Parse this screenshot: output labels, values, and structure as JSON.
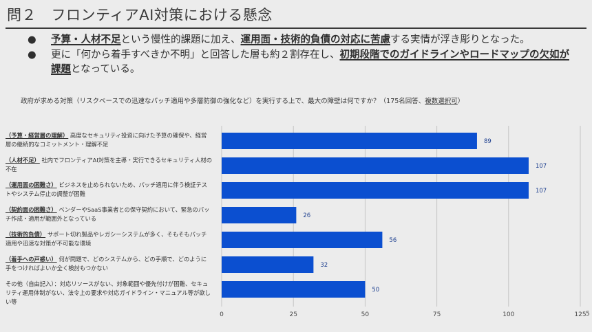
{
  "title": "問２　フロンティアAI対策における懸念",
  "bullets": [
    {
      "marker": "●",
      "segments": [
        {
          "text": "予算・人材不足",
          "em": true
        },
        {
          "text": "という慢性的課題に加え、",
          "em": false
        },
        {
          "text": "運用面・技術的負債の対応に苦慮",
          "em": true
        },
        {
          "text": "する実情が浮き彫りとなった。",
          "em": false
        }
      ]
    },
    {
      "marker": "●",
      "segments": [
        {
          "text": "更に「何から着手すべきか不明」と回答した層も約２割存在し、",
          "em": false
        },
        {
          "text": "初期段階でのガイドラインやロードマップの欠如が課題",
          "em": true
        },
        {
          "text": "となっている。",
          "em": false
        }
      ]
    }
  ],
  "question": {
    "main": "政府が求める対策（リスクベースでの迅速なパッチ適用や多層防御の強化など）を実行する上で、最大の障壁は何ですか？（175名回答、",
    "underlined": "複数選択可",
    "end": "）"
  },
  "categories": [
    {
      "tag": "（予算・経営層の理解）",
      "desc": "高度なセキュリティ投資に向けた予算の確保や、経営層の継続的なコミットメント・理解不足"
    },
    {
      "tag": "（人材不足）",
      "desc": "社内でフロンティアAI対策を主導・実行できるセキュリティ人材の不在"
    },
    {
      "tag": "（運用面の困難さ）",
      "desc": "ビジネスを止められないため、パッチ適用に伴う検証テストやシステム停止の調整が困難"
    },
    {
      "tag": "（契約面の困難さ）",
      "desc": "ベンダーやSaaS事業者との保守契約において、緊急のパッチ作成・適用が範囲外となっている"
    },
    {
      "tag": "（技術的負債）",
      "desc": "サポート切れ製品やレガシーシステムが多く、そもそもパッチ適用や迅速な対策が不可能な環境"
    },
    {
      "tag": "（着手への戸惑い）",
      "desc": "何が問題で、どのシステムから、どの手順で、どのように手をつければよいか全く検討もつかない"
    },
    {
      "tag": "",
      "desc": "その他（自由記入）：対応リソースがない、対象範囲や優先付けが困難、セキュリティ運用体制がない、法令上の要求や対応ガイドライン・マニュアル等が欲しい等"
    }
  ],
  "page_number": "5",
  "colors": {
    "bar": "#0b4fd0",
    "grid": "#c4c4c4",
    "background": "#ececec",
    "value_label": "#1d3f8f"
  },
  "chart_data": {
    "type": "bar",
    "orientation": "horizontal",
    "categories": [
      "予算・経営層の理解",
      "人材不足",
      "運用面の困難さ",
      "契約面の困難さ",
      "技術的負債",
      "着手への戸惑い",
      "その他（自由記入）"
    ],
    "values": [
      89,
      107,
      107,
      26,
      56,
      32,
      50
    ],
    "xlim": [
      0,
      125
    ],
    "xticks": [
      "0",
      "25",
      "50",
      "75",
      "100",
      "125"
    ],
    "grid": true
  }
}
